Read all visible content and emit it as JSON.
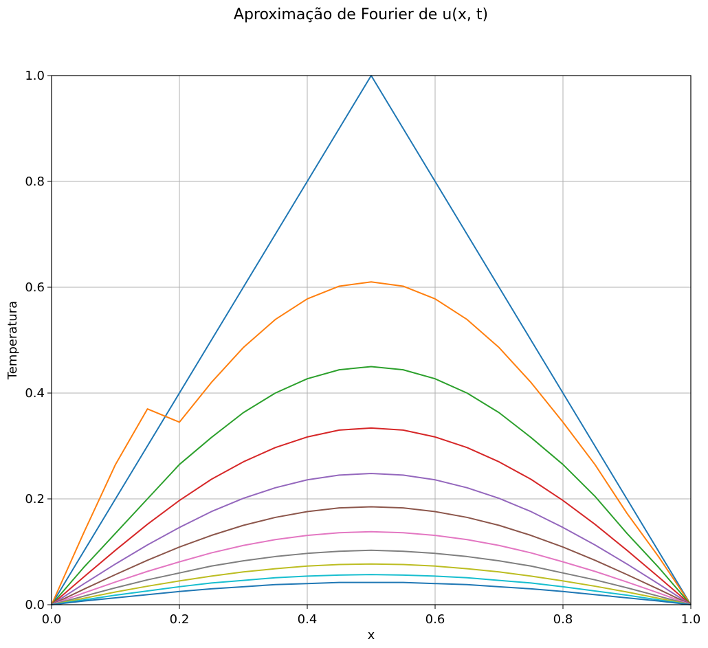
{
  "chart_data": {
    "type": "line",
    "title": "Aproximação de Fourier de u(x, t)",
    "xlabel": "x",
    "ylabel": "Temperatura",
    "xlim": [
      0,
      1
    ],
    "ylim": [
      0,
      1
    ],
    "grid": true,
    "xticks": [
      "0.0",
      "0.2",
      "0.4",
      "0.6",
      "0.8",
      "1.0"
    ],
    "yticks": [
      "0.0",
      "0.2",
      "0.4",
      "0.6",
      "0.8",
      "1.0"
    ],
    "x": [
      0.0,
      0.05,
      0.1,
      0.15,
      0.2,
      0.25,
      0.3,
      0.35,
      0.4,
      0.45,
      0.5,
      0.55,
      0.6,
      0.65,
      0.7,
      0.75,
      0.8,
      0.85,
      0.9,
      0.95,
      1.0
    ],
    "series": [
      {
        "color": "#1f77b4",
        "values": [
          0.0,
          0.1,
          0.2,
          0.3,
          0.4,
          0.5,
          0.6,
          0.7,
          0.8,
          0.9,
          1.0,
          0.9,
          0.8,
          0.7,
          0.6,
          0.5,
          0.4,
          0.3,
          0.2,
          0.1,
          0.0
        ]
      },
      {
        "color": "#ff7f0e",
        "values": [
          0.0,
          0.135,
          0.265,
          0.37,
          0.345,
          0.42,
          0.486,
          0.539,
          0.578,
          0.602,
          0.61,
          0.602,
          0.578,
          0.539,
          0.486,
          0.42,
          0.345,
          0.265,
          0.173,
          0.09,
          0.0
        ]
      },
      {
        "color": "#2ca02c",
        "values": [
          0.0,
          0.07,
          0.135,
          0.2,
          0.265,
          0.316,
          0.363,
          0.4,
          0.427,
          0.444,
          0.45,
          0.444,
          0.427,
          0.4,
          0.363,
          0.316,
          0.265,
          0.205,
          0.135,
          0.07,
          0.0
        ]
      },
      {
        "color": "#d62728",
        "values": [
          0.0,
          0.052,
          0.103,
          0.152,
          0.197,
          0.237,
          0.27,
          0.297,
          0.317,
          0.33,
          0.334,
          0.33,
          0.317,
          0.297,
          0.27,
          0.237,
          0.197,
          0.152,
          0.103,
          0.052,
          0.0
        ]
      },
      {
        "color": "#9467bd",
        "values": [
          0.0,
          0.039,
          0.077,
          0.113,
          0.146,
          0.176,
          0.201,
          0.221,
          0.236,
          0.245,
          0.248,
          0.245,
          0.236,
          0.221,
          0.201,
          0.176,
          0.146,
          0.113,
          0.077,
          0.039,
          0.0
        ]
      },
      {
        "color": "#8c564b",
        "values": [
          0.0,
          0.029,
          0.057,
          0.084,
          0.109,
          0.131,
          0.15,
          0.165,
          0.176,
          0.183,
          0.185,
          0.183,
          0.176,
          0.165,
          0.15,
          0.131,
          0.109,
          0.084,
          0.057,
          0.029,
          0.0
        ]
      },
      {
        "color": "#e377c2",
        "values": [
          0.0,
          0.022,
          0.043,
          0.063,
          0.081,
          0.098,
          0.112,
          0.123,
          0.131,
          0.136,
          0.138,
          0.136,
          0.131,
          0.123,
          0.112,
          0.098,
          0.081,
          0.063,
          0.043,
          0.022,
          0.0
        ]
      },
      {
        "color": "#7f7f7f",
        "values": [
          0.0,
          0.016,
          0.032,
          0.047,
          0.06,
          0.073,
          0.083,
          0.091,
          0.097,
          0.101,
          0.103,
          0.101,
          0.097,
          0.091,
          0.083,
          0.073,
          0.06,
          0.047,
          0.032,
          0.016,
          0.0
        ]
      },
      {
        "color": "#bcbd22",
        "values": [
          0.0,
          0.012,
          0.024,
          0.035,
          0.045,
          0.054,
          0.062,
          0.068,
          0.073,
          0.076,
          0.077,
          0.076,
          0.073,
          0.068,
          0.062,
          0.054,
          0.045,
          0.035,
          0.024,
          0.012,
          0.0
        ]
      },
      {
        "color": "#17becf",
        "values": [
          0.0,
          0.009,
          0.018,
          0.026,
          0.034,
          0.041,
          0.046,
          0.051,
          0.054,
          0.056,
          0.057,
          0.056,
          0.054,
          0.051,
          0.046,
          0.041,
          0.034,
          0.026,
          0.018,
          0.009,
          0.0
        ]
      },
      {
        "color": "#1f77b4",
        "values": [
          0.0,
          0.007,
          0.013,
          0.019,
          0.025,
          0.03,
          0.034,
          0.038,
          0.04,
          0.042,
          0.042,
          0.042,
          0.04,
          0.038,
          0.034,
          0.03,
          0.025,
          0.019,
          0.013,
          0.007,
          0.0
        ]
      }
    ]
  }
}
